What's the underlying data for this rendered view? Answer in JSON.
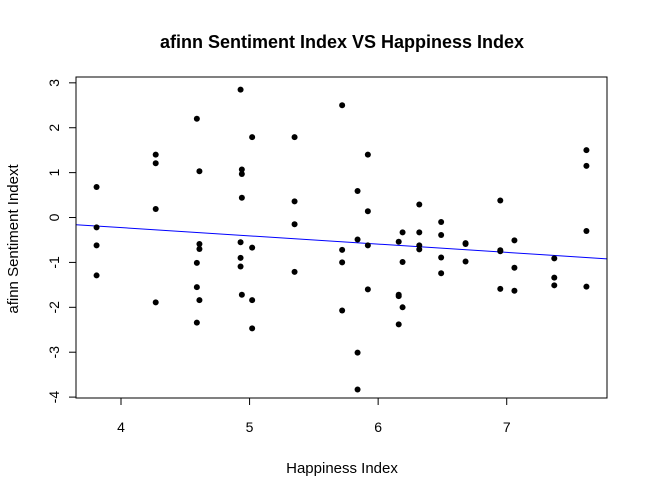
{
  "chart_data": {
    "type": "scatter",
    "title": "afinn Sentiment Index VS Happiness Index",
    "xlabel": "Happiness Index",
    "ylabel": "afinn Sentiment Indext",
    "xlim": [
      3.65,
      7.78
    ],
    "ylim": [
      -4.02,
      3.13
    ],
    "xticks": [
      4,
      5,
      6,
      7
    ],
    "yticks": [
      -4,
      -3,
      -2,
      -1,
      0,
      1,
      2,
      3
    ],
    "grid": false,
    "legend": "none",
    "colors": {
      "points": "#000000",
      "line": "#0000ff",
      "frame": "#000000"
    },
    "points": [
      {
        "x": 3.81,
        "y": 0.68
      },
      {
        "x": 3.81,
        "y": -0.22
      },
      {
        "x": 3.81,
        "y": -0.62
      },
      {
        "x": 3.81,
        "y": -1.29
      },
      {
        "x": 4.27,
        "y": 1.4
      },
      {
        "x": 4.27,
        "y": 1.21
      },
      {
        "x": 4.27,
        "y": 0.19
      },
      {
        "x": 4.27,
        "y": -1.89
      },
      {
        "x": 4.59,
        "y": 2.2
      },
      {
        "x": 4.59,
        "y": -1.01
      },
      {
        "x": 4.59,
        "y": -1.55
      },
      {
        "x": 4.59,
        "y": -2.34
      },
      {
        "x": 4.61,
        "y": 1.03
      },
      {
        "x": 4.61,
        "y": -0.59
      },
      {
        "x": 4.61,
        "y": -0.7
      },
      {
        "x": 4.61,
        "y": -1.84
      },
      {
        "x": 4.93,
        "y": 2.85
      },
      {
        "x": 4.93,
        "y": -0.55
      },
      {
        "x": 4.93,
        "y": -0.9
      },
      {
        "x": 4.93,
        "y": -1.09
      },
      {
        "x": 4.94,
        "y": 1.07
      },
      {
        "x": 4.94,
        "y": 0.97
      },
      {
        "x": 4.94,
        "y": 0.44
      },
      {
        "x": 4.94,
        "y": -1.72
      },
      {
        "x": 5.02,
        "y": 1.79
      },
      {
        "x": 5.02,
        "y": -0.67
      },
      {
        "x": 5.02,
        "y": -1.84
      },
      {
        "x": 5.02,
        "y": -2.47
      },
      {
        "x": 5.35,
        "y": 1.79
      },
      {
        "x": 5.35,
        "y": 0.36
      },
      {
        "x": 5.35,
        "y": -0.15
      },
      {
        "x": 5.35,
        "y": -1.21
      },
      {
        "x": 5.72,
        "y": 2.5
      },
      {
        "x": 5.72,
        "y": -0.72
      },
      {
        "x": 5.72,
        "y": -1.0
      },
      {
        "x": 5.72,
        "y": -2.07
      },
      {
        "x": 5.84,
        "y": 0.59
      },
      {
        "x": 5.84,
        "y": -0.49
      },
      {
        "x": 5.84,
        "y": -3.01
      },
      {
        "x": 5.84,
        "y": -3.83
      },
      {
        "x": 5.92,
        "y": 1.4
      },
      {
        "x": 5.92,
        "y": 0.14
      },
      {
        "x": 5.92,
        "y": -0.62
      },
      {
        "x": 5.92,
        "y": -1.6
      },
      {
        "x": 6.16,
        "y": -0.54
      },
      {
        "x": 6.16,
        "y": -1.72
      },
      {
        "x": 6.16,
        "y": -1.75
      },
      {
        "x": 6.16,
        "y": -2.38
      },
      {
        "x": 6.19,
        "y": -0.33
      },
      {
        "x": 6.19,
        "y": -0.99
      },
      {
        "x": 6.19,
        "y": -2.0
      },
      {
        "x": 6.32,
        "y": 0.29
      },
      {
        "x": 6.32,
        "y": -0.33
      },
      {
        "x": 6.32,
        "y": -0.62
      },
      {
        "x": 6.32,
        "y": -0.71
      },
      {
        "x": 6.49,
        "y": -0.1
      },
      {
        "x": 6.49,
        "y": -0.39
      },
      {
        "x": 6.49,
        "y": -0.89
      },
      {
        "x": 6.49,
        "y": -1.24
      },
      {
        "x": 6.68,
        "y": -0.57
      },
      {
        "x": 6.68,
        "y": -0.59
      },
      {
        "x": 6.68,
        "y": -0.98
      },
      {
        "x": 6.95,
        "y": 0.38
      },
      {
        "x": 6.95,
        "y": -0.73
      },
      {
        "x": 6.95,
        "y": -0.75
      },
      {
        "x": 6.95,
        "y": -1.59
      },
      {
        "x": 7.06,
        "y": -0.51
      },
      {
        "x": 7.06,
        "y": -1.12
      },
      {
        "x": 7.06,
        "y": -1.63
      },
      {
        "x": 7.37,
        "y": -0.91
      },
      {
        "x": 7.37,
        "y": -1.34
      },
      {
        "x": 7.37,
        "y": -1.51
      },
      {
        "x": 7.62,
        "y": 1.5
      },
      {
        "x": 7.62,
        "y": 1.15
      },
      {
        "x": 7.62,
        "y": -0.3
      },
      {
        "x": 7.62,
        "y": -1.54
      }
    ],
    "regression_line": {
      "x": [
        3.65,
        7.78
      ],
      "y": [
        -0.16,
        -0.92
      ]
    }
  }
}
